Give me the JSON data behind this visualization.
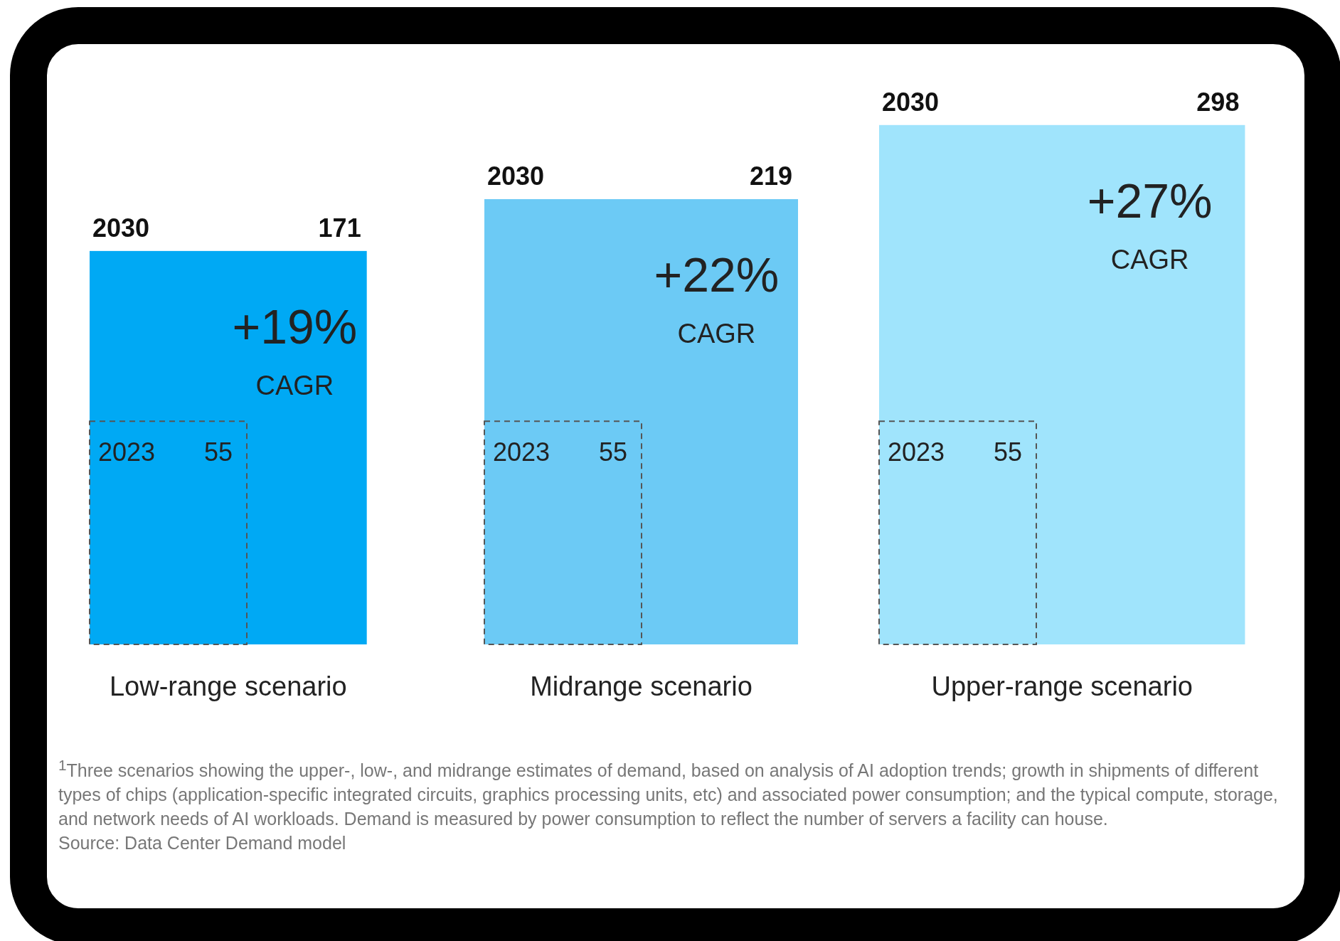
{
  "chart_data": {
    "type": "other",
    "categories": [
      "Low-range scenario",
      "Midrange scenario",
      "Upper-range scenario"
    ],
    "series": [
      {
        "name": "2030",
        "values": [
          171,
          219,
          298
        ],
        "colors": [
          "#00a9f4",
          "#6ccaf5",
          "#a0e4fc"
        ]
      },
      {
        "name": "2023",
        "values": [
          55,
          55,
          55
        ],
        "colors": [
          "#00a9f4",
          "#6ccaf5",
          "#a0e4fc"
        ],
        "line_style": "dashed"
      }
    ],
    "data_labels": true,
    "annotations": [
      {
        "text": "+19%",
        "x": "Low-range scenario"
      },
      {
        "text": "CAGR",
        "x": "Low-range scenario"
      },
      {
        "text": "+22%",
        "x": "Midrange scenario"
      },
      {
        "text": "CAGR",
        "x": "Midrange scenario"
      },
      {
        "text": "+27%",
        "x": "Upper-range scenario"
      },
      {
        "text": "CAGR",
        "x": "Upper-range scenario"
      },
      "$^{1}$Three scenarios showing the upper-, low-, and midrange estimates of demand, based on analysis of AI adoption trends; growth in shipments of different types of chips (application-specific integrated circuits, graphics processing units, etc) and associated power consumption; and the typical compute, storage, and network needs of AI workloads. Demand is measured by power consumption to reflect the number of servers a facility can house.",
      "Source: Data Center Demand model"
    ]
  }
}
